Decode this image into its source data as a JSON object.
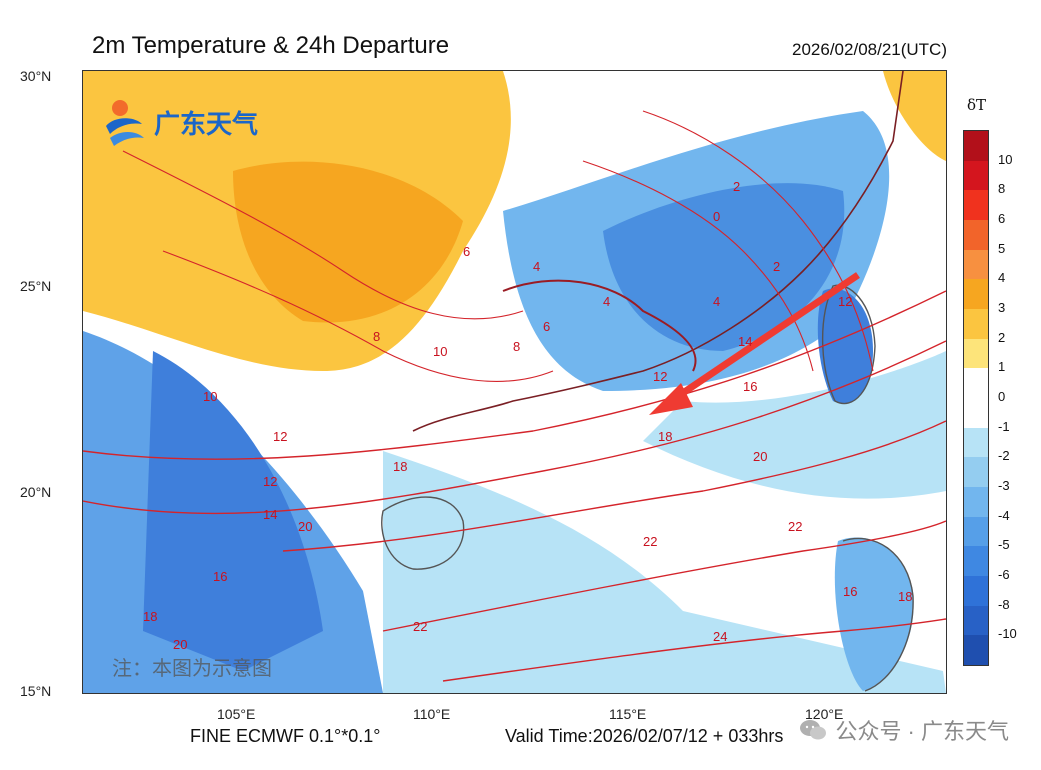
{
  "title": "2m Temperature & 24h Departure",
  "valid_utc": "2026/02/08/21(UTC)",
  "footer": {
    "model": "FINE ECMWF 0.1°*0.1°",
    "valid_time": "Valid Time:2026/02/07/12 + 033hrs"
  },
  "watermark": {
    "logo_text": "广东天气",
    "note": "注：本图为示意图",
    "wechat": "公众号 · 广东天气"
  },
  "axes": {
    "lat_labels": [
      "30°N",
      "25°N",
      "20°N",
      "15°N"
    ],
    "lon_labels": [
      "105°E",
      "110°E",
      "115°E",
      "120°E"
    ]
  },
  "colorbar": {
    "title": "δT",
    "labels": [
      "10",
      "8",
      "6",
      "5",
      "4",
      "3",
      "2",
      "1",
      "0",
      "-1",
      "-2",
      "-3",
      "-4",
      "-5",
      "-6",
      "-8",
      "-10"
    ],
    "colors": [
      "#b2101a",
      "#d4151e",
      "#f0321e",
      "#f2642a",
      "#f79040",
      "#f6a620",
      "#fbc540",
      "#fde47a",
      "#ffffff",
      "#ffffff",
      "#b7e3f6",
      "#94cdf0",
      "#72b6ee",
      "#569fe8",
      "#3f88e2",
      "#2f72d8",
      "#2861c6",
      "#1f4faf"
    ]
  },
  "contour_labels": [
    "2",
    "4",
    "6",
    "8",
    "10",
    "12",
    "14",
    "16",
    "18",
    "20",
    "22",
    "24",
    "0"
  ],
  "colors": {
    "contour": "#d4242b",
    "warm": "#f6a620",
    "cool": "#4a8fe0",
    "arrow": "#ef3b32"
  }
}
